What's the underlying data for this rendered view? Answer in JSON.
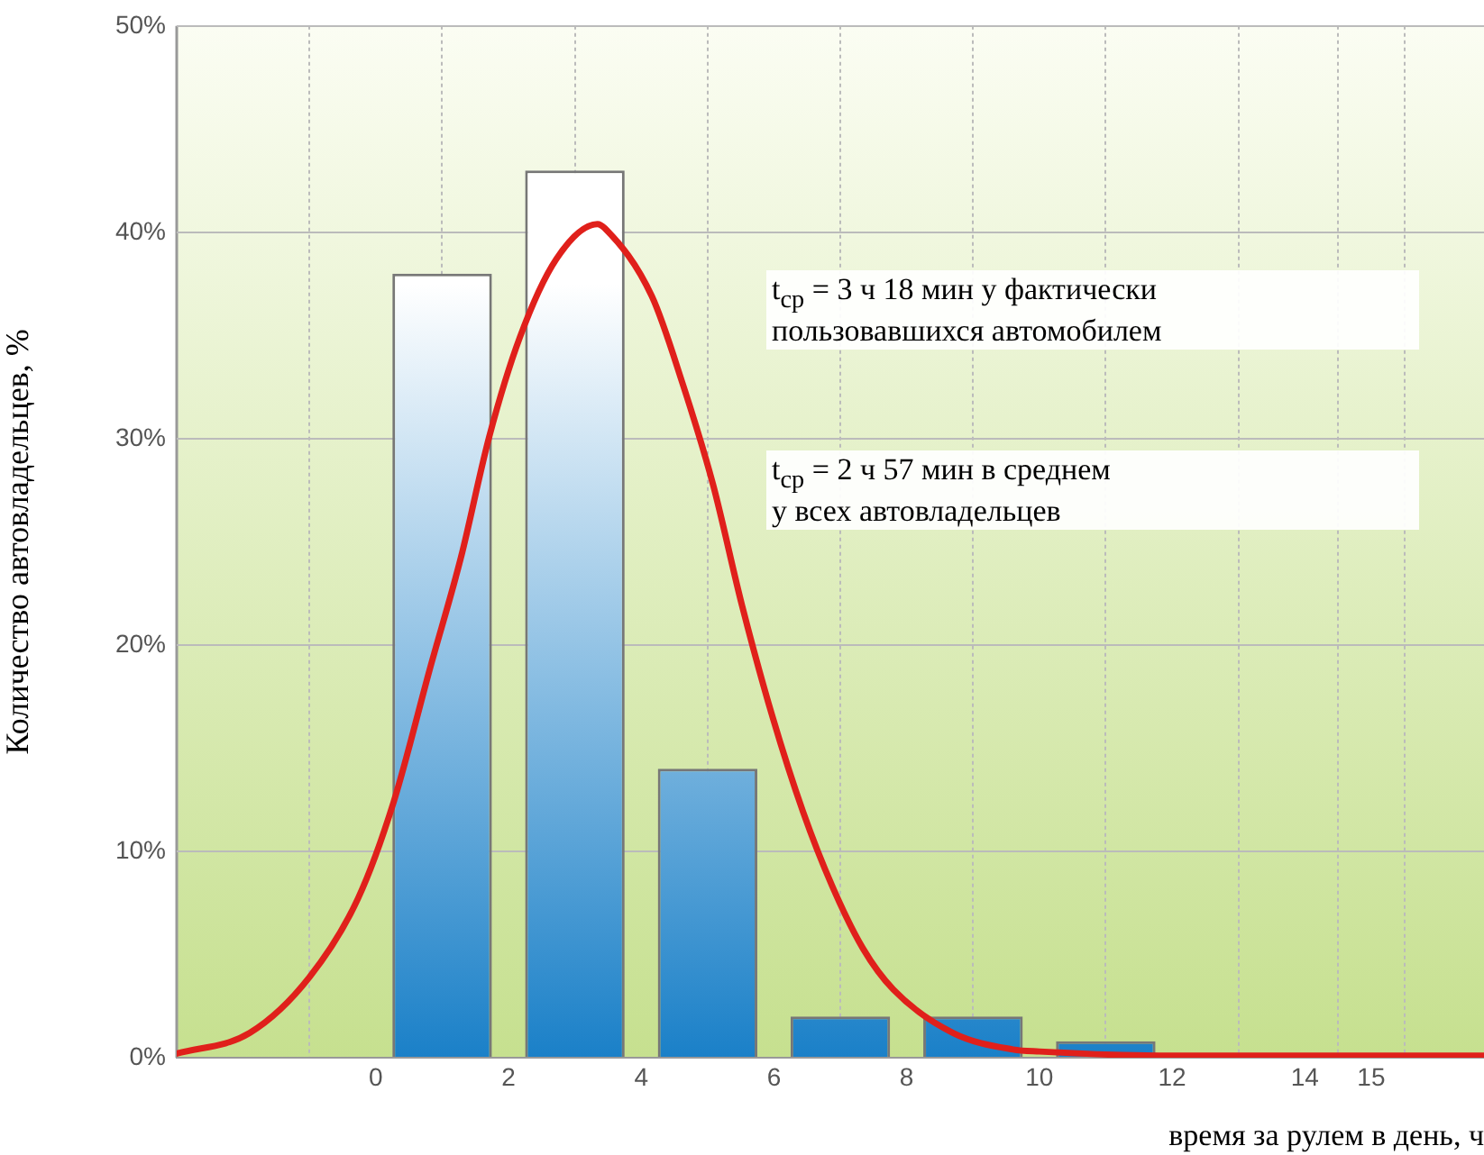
{
  "chart_data": {
    "type": "bar",
    "xlabel": "время за рулем в день, ч",
    "ylabel": "Количество автовладельцев, %",
    "x": [
      1,
      3,
      5,
      7,
      9,
      11
    ],
    "xlim": [
      -3,
      16.7
    ],
    "xticks": [
      0,
      2,
      4,
      6,
      8,
      10,
      12,
      14,
      15
    ],
    "ylim": [
      0,
      50
    ],
    "yticks": [
      {
        "value": 0,
        "label": "0%"
      },
      {
        "value": 10,
        "label": "10%"
      },
      {
        "value": 20,
        "label": "20%"
      },
      {
        "value": 30,
        "label": "30%"
      },
      {
        "value": 40,
        "label": "40%"
      },
      {
        "value": 50,
        "label": "50%"
      }
    ],
    "grid": true,
    "series": [
      {
        "color": "#1a80c8",
        "values": [
          38,
          43,
          14,
          2,
          2,
          0.8
        ]
      },
      {
        "type": "line",
        "color": "#e0201b",
        "x": [
          -3,
          -1.9,
          -1,
          -0.27,
          0.27,
          0.82,
          1.28,
          1.71,
          2.17,
          2.72,
          3.34,
          3.45,
          4.16,
          4.62,
          5.08,
          5.52,
          5.98,
          6.44,
          6.88,
          7.34,
          7.8,
          8.7,
          9.6,
          10,
          12,
          14,
          16.7
        ],
        "values": [
          0.2,
          1.2,
          3.9,
          7.7,
          12.4,
          18.9,
          24.2,
          30.1,
          34.9,
          38.7,
          40.4,
          40.2,
          36.9,
          32.7,
          27.8,
          21.9,
          16.5,
          11.9,
          8.3,
          5.3,
          3.3,
          1.2,
          0.4,
          0.3,
          0.1,
          0.1,
          0.1
        ]
      }
    ],
    "annotations": [
      "t$_{ср}$ = 3 ч 18 мин у фактически\nпользовавшихся автомобилем",
      "t$_{ср}$ = 2 ч 57 мин в среднем\nу всех автовладельцев"
    ]
  }
}
